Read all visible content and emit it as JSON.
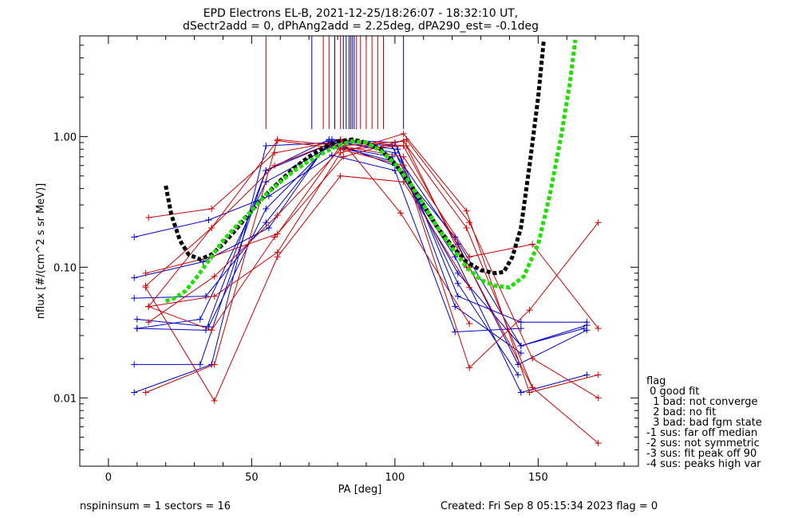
{
  "chart_data": {
    "type": "line",
    "title": "EPD Electrons EL-B, 2021-12-25/18:26:07 - 18:32:10 UT,",
    "subtitle": "dSectr2add = 0, dPhAng2add = 2.25deg, dPA290_est=  -0.1deg",
    "xlabel": "PA [deg]",
    "ylabel": "nflux [#/(cm^2 s sr MeV)]",
    "xlim": [
      -10,
      185
    ],
    "ylim": [
      0.003,
      5.9
    ],
    "yscale": "log",
    "xticks": [
      0,
      50,
      100,
      150
    ],
    "xtick_labels": [
      "0",
      "50",
      "100",
      "150"
    ],
    "yticks": [
      0.01,
      0.1,
      1.0
    ],
    "ytick_labels": [
      "0.01",
      "0.10",
      "1.00"
    ],
    "colors": {
      "up": "#cc0000",
      "down": "#0000cc",
      "fit_median": "#000000",
      "fit_model": "#22dd00"
    },
    "vertical_markers": [
      {
        "x": 55.0,
        "color": "#cc0000"
      },
      {
        "x": 71.0,
        "color": "#0000cc"
      },
      {
        "x": 75.0,
        "color": "#cc0000"
      },
      {
        "x": 77.0,
        "color": "#cc0000"
      },
      {
        "x": 79.0,
        "color": "#0000cc"
      },
      {
        "x": 81.0,
        "color": "#cc0000"
      },
      {
        "x": 82.0,
        "color": "#0000cc"
      },
      {
        "x": 83.0,
        "color": "#0000cc"
      },
      {
        "x": 84.0,
        "color": "#0000cc"
      },
      {
        "x": 84.6,
        "color": "#0000cc"
      },
      {
        "x": 85.2,
        "color": "#0000cc"
      },
      {
        "x": 85.8,
        "color": "#0000cc"
      },
      {
        "x": 86.6,
        "color": "#cc0000"
      },
      {
        "x": 88.0,
        "color": "#cc0000"
      },
      {
        "x": 90.0,
        "color": "#cc0000"
      },
      {
        "x": 92.0,
        "color": "#cc0000"
      },
      {
        "x": 94.0,
        "color": "#cc0000"
      },
      {
        "x": 96.0,
        "color": "#cc0000"
      },
      {
        "x": 103.0,
        "color": "#0000cc"
      }
    ],
    "series": [
      {
        "color": "#0000cc",
        "x": [
          9,
          36,
          55,
          78,
          100,
          121,
          144,
          167
        ],
        "y": [
          0.011,
          0.018,
          0.85,
          0.9,
          0.6,
          0.12,
          0.011,
          0.015
        ]
      },
      {
        "color": "#0000cc",
        "x": [
          9,
          32,
          55,
          77,
          100,
          122,
          143,
          167
        ],
        "y": [
          0.018,
          0.018,
          0.55,
          0.95,
          0.75,
          0.15,
          0.018,
          0.033
        ]
      },
      {
        "color": "#0000cc",
        "x": [
          10,
          32,
          55,
          78,
          99,
          122,
          144,
          167
        ],
        "y": [
          0.034,
          0.04,
          0.45,
          0.85,
          0.7,
          0.09,
          0.025,
          0.036
        ]
      },
      {
        "color": "#0000cc",
        "x": [
          10,
          35,
          55,
          78,
          101,
          122,
          144,
          167
        ],
        "y": [
          0.04,
          0.035,
          0.28,
          0.9,
          0.8,
          0.06,
          0.038,
          0.038
        ]
      },
      {
        "color": "#0000cc",
        "x": [
          9,
          34,
          55,
          78,
          100,
          121,
          144
        ],
        "y": [
          0.058,
          0.06,
          0.22,
          0.95,
          0.9,
          0.05,
          0.022
        ]
      },
      {
        "color": "#0000cc",
        "x": [
          9,
          33,
          56,
          77,
          99,
          122,
          143
        ],
        "y": [
          0.083,
          0.11,
          0.2,
          0.92,
          0.85,
          0.075,
          0.015
        ]
      },
      {
        "color": "#0000cc",
        "x": [
          9,
          35,
          56,
          78,
          100,
          121,
          144
        ],
        "y": [
          0.17,
          0.23,
          0.35,
          0.72,
          0.55,
          0.032,
          0.034
        ]
      },
      {
        "color": "#0000cc",
        "x": [
          10,
          34,
          55,
          77,
          99,
          121,
          144,
          166
        ],
        "y": [
          0.034,
          0.033,
          0.55,
          0.87,
          0.65,
          0.17,
          0.025,
          0.034
        ]
      },
      {
        "color": "#cc0000",
        "x": [
          13,
          37,
          59,
          81,
          103,
          125,
          148,
          171
        ],
        "y": [
          0.011,
          0.018,
          0.95,
          0.85,
          0.92,
          0.2,
          0.012,
          0.0045
        ]
      },
      {
        "color": "#cc0000",
        "x": [
          14,
          36,
          58,
          82,
          104,
          126,
          148,
          171
        ],
        "y": [
          0.05,
          0.033,
          0.17,
          0.7,
          0.95,
          0.22,
          0.02,
          0.01
        ]
      },
      {
        "color": "#cc0000",
        "x": [
          14,
          37,
          59,
          81,
          103,
          125,
          147,
          171
        ],
        "y": [
          0.05,
          0.06,
          0.13,
          0.75,
          1.05,
          0.27,
          0.011,
          0.015
        ]
      },
      {
        "color": "#cc0000",
        "x": [
          13,
          36,
          59,
          81,
          103,
          126,
          148,
          171
        ],
        "y": [
          0.09,
          0.12,
          0.18,
          0.85,
          0.7,
          0.12,
          0.15,
          0.034
        ]
      },
      {
        "color": "#cc0000",
        "x": [
          14,
          36,
          58,
          81,
          104,
          125
        ],
        "y": [
          0.24,
          0.28,
          0.75,
          0.93,
          0.85,
          0.1
        ]
      },
      {
        "color": "#cc0000",
        "x": [
          13,
          37,
          59,
          81,
          103,
          126
        ],
        "y": [
          0.07,
          0.0095,
          0.12,
          0.5,
          0.45,
          0.07
        ]
      },
      {
        "color": "#cc0000",
        "x": [
          14,
          36,
          58,
          81,
          102,
          126
        ],
        "y": [
          0.05,
          0.2,
          0.6,
          0.95,
          0.26,
          0.037
        ]
      },
      {
        "color": "#cc0000",
        "x": [
          14,
          37,
          59,
          81,
          103,
          126,
          147,
          171
        ],
        "y": [
          0.038,
          0.085,
          0.25,
          0.8,
          0.6,
          0.017,
          0.047,
          0.22
        ]
      },
      {
        "color": "#cc0000",
        "x": [
          13,
          36,
          59,
          82,
          103,
          126,
          148
        ],
        "y": [
          0.072,
          0.2,
          0.93,
          0.8,
          0.85,
          0.1,
          0.012
        ]
      }
    ],
    "fits": [
      {
        "color": "#000000",
        "x": [
          20,
          22,
          25,
          28,
          32,
          36,
          40,
          45,
          50,
          55,
          60,
          65,
          70,
          75,
          80,
          85,
          90,
          95,
          100,
          105,
          110,
          115,
          120,
          125,
          130,
          135,
          138,
          141,
          144,
          147,
          150,
          152
        ],
        "y": [
          0.42,
          0.25,
          0.16,
          0.125,
          0.115,
          0.125,
          0.15,
          0.2,
          0.27,
          0.36,
          0.46,
          0.58,
          0.7,
          0.82,
          0.92,
          0.95,
          0.9,
          0.8,
          0.62,
          0.45,
          0.3,
          0.2,
          0.145,
          0.11,
          0.095,
          0.09,
          0.092,
          0.12,
          0.2,
          0.6,
          2.0,
          5.5
        ]
      },
      {
        "color": "#22dd00",
        "x": [
          20,
          23,
          27,
          31,
          36,
          40,
          45,
          50,
          55,
          60,
          65,
          70,
          75,
          80,
          85,
          90,
          95,
          100,
          105,
          110,
          115,
          120,
          125,
          130,
          135,
          140,
          145,
          150,
          154,
          158,
          161,
          163
        ],
        "y": [
          0.055,
          0.058,
          0.066,
          0.085,
          0.12,
          0.16,
          0.21,
          0.27,
          0.36,
          0.45,
          0.55,
          0.65,
          0.75,
          0.85,
          0.92,
          0.9,
          0.78,
          0.62,
          0.45,
          0.3,
          0.2,
          0.14,
          0.1,
          0.08,
          0.072,
          0.07,
          0.085,
          0.15,
          0.35,
          1.0,
          2.5,
          5.5
        ]
      }
    ],
    "legend": {
      "title": "flag",
      "items": [
        " 0 good fit",
        "  1 bad: not converge",
        "  2 bad: no fit",
        "  3 bad: bad fgm state",
        "-1 sus: far off median",
        "-2 sus: not symmetric",
        "-3 sus: fit peak off 90",
        "-4 sus: peaks high var"
      ]
    }
  },
  "footer": {
    "left": "nspininsum =  1  sectors = 16",
    "right": "Created: Fri Sep  8 05:15:34 2023   flag = 0"
  }
}
